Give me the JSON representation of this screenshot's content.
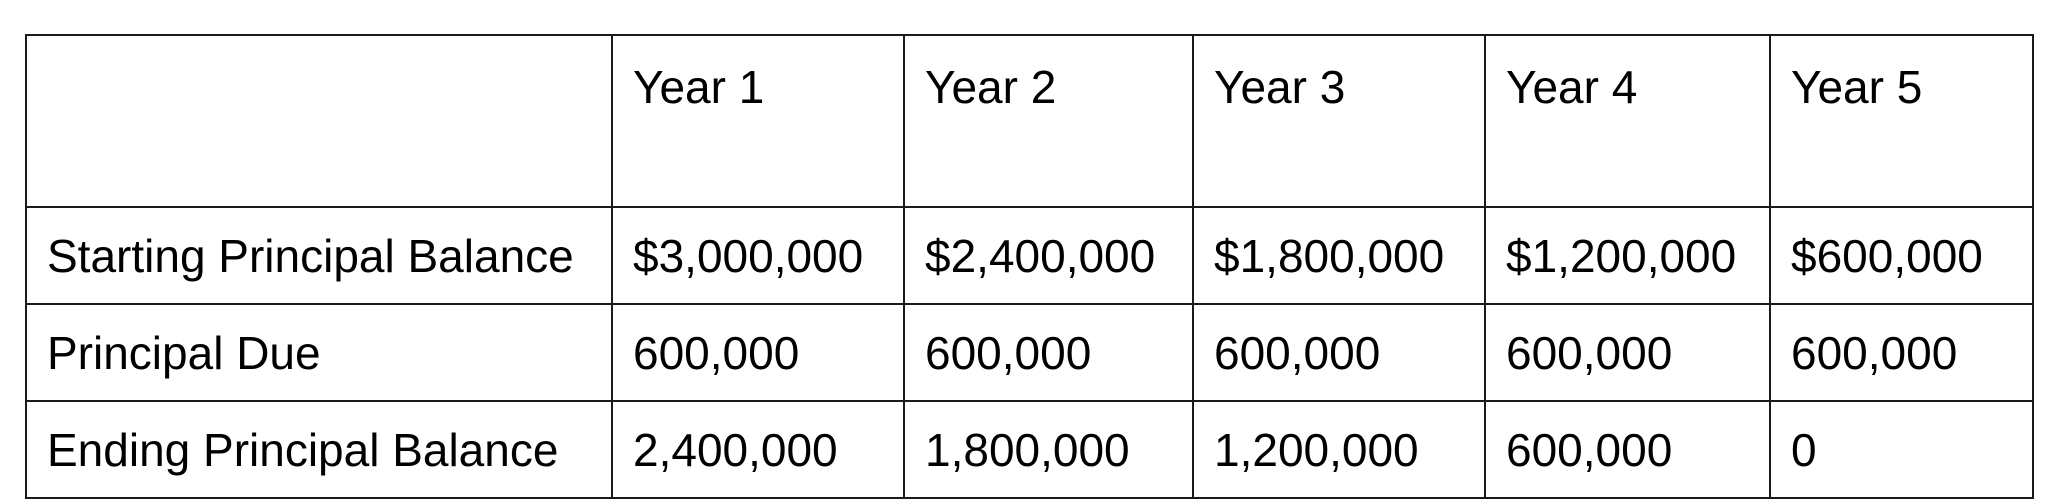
{
  "table": {
    "header": {
      "corner": "",
      "columns": [
        "Year 1",
        "Year 2",
        "Year 3",
        "Year 4",
        "Year 5"
      ]
    },
    "rows": [
      {
        "label": "Starting Principal Balance",
        "cells": [
          "$3,000,000",
          "$2,400,000",
          "$1,800,000",
          "$1,200,000",
          "$600,000"
        ]
      },
      {
        "label": "Principal Due",
        "cells": [
          "600,000",
          "600,000",
          "600,000",
          "600,000",
          "600,000"
        ]
      },
      {
        "label": "Ending Principal Balance",
        "cells": [
          "2,400,000",
          "1,800,000",
          "1,200,000",
          "600,000",
          "0"
        ]
      }
    ]
  }
}
